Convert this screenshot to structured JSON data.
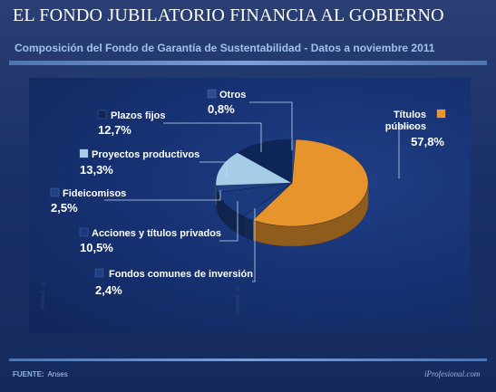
{
  "header": {
    "title": "EL FONDO JUBILATORIO FINANCIA AL GOBIERNO",
    "subtitle": "Composición del Fondo de Garantía de Sustentabilidad - Datos a noviembre 2011"
  },
  "footer": {
    "source_label": "FUENTE:",
    "source_value": "Anses",
    "brand": "iProfesional.com"
  },
  "chart_data": {
    "type": "pie",
    "title": "Composición del Fondo de Garantía de Sustentabilidad - Datos a noviembre 2011",
    "unit": "%",
    "slices": [
      {
        "name": "Títulos públicos",
        "value": 57.8,
        "label": "57,8%",
        "color": "#e8942c"
      },
      {
        "name": "Fondos comunes de inversión",
        "value": 2.4,
        "label": "2,4%",
        "color": "#1d3f88"
      },
      {
        "name": "Acciones y títulos privados",
        "value": 10.5,
        "label": "10,5%",
        "color": "#1a3a7e"
      },
      {
        "name": "Fideicomisos",
        "value": 2.5,
        "label": "2,5%",
        "color": "#213f85"
      },
      {
        "name": "Proyectos productivos",
        "value": 13.3,
        "label": "13,3%",
        "color": "#a6cde8"
      },
      {
        "name": "Plazos fijos",
        "value": 12.7,
        "label": "12,7%",
        "color": "#0e2558"
      },
      {
        "name": "Otros",
        "value": 0.8,
        "label": "0,8%",
        "color": "#2a4c94"
      }
    ]
  }
}
